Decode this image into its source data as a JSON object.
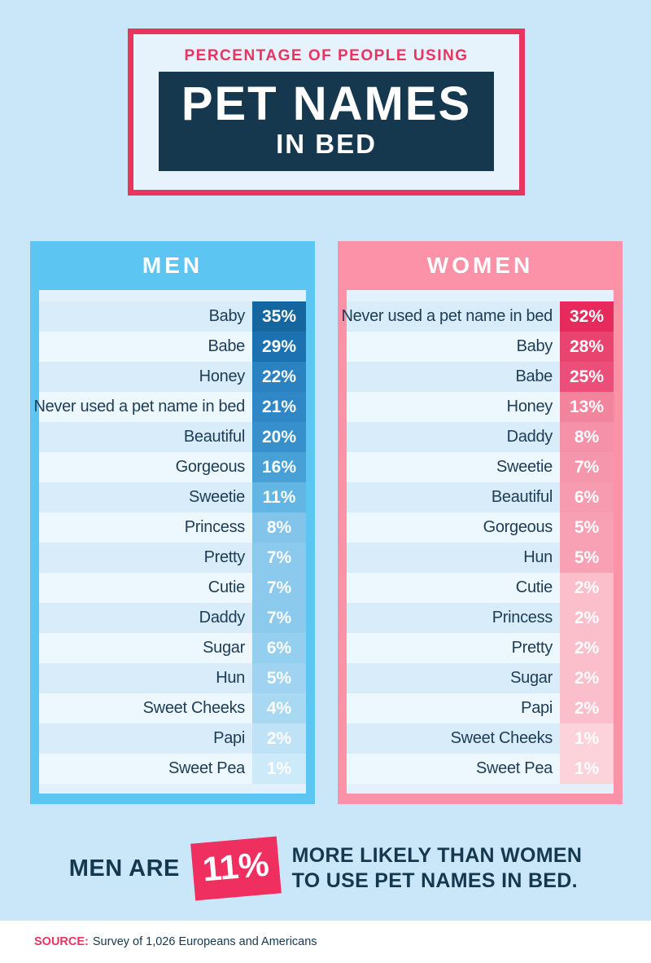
{
  "title": {
    "eyebrow": "PERCENTAGE OF PEOPLE USING",
    "headline": "PET NAMES",
    "subheadline": "IN BED"
  },
  "colors": {
    "page_background": "#c9e7f9",
    "accent_pink": "#e8345e",
    "navy": "#16384e",
    "men_panel": "#5cc5f2",
    "women_panel": "#fb92a8",
    "list_background": "#e2f1fc",
    "row_tint": "#d8ecf9",
    "row_light": "#edf7fe",
    "badge_pink": "#ee2f5f"
  },
  "panels": [
    {
      "id": "men",
      "label": "MEN",
      "items": [
        {
          "label": "Baby",
          "value": "35%",
          "color": "#15669f"
        },
        {
          "label": "Babe",
          "value": "29%",
          "color": "#1c72b0"
        },
        {
          "label": "Honey",
          "value": "22%",
          "color": "#2a82c0"
        },
        {
          "label": "Never used a pet name in bed",
          "value": "21%",
          "color": "#2f87c5"
        },
        {
          "label": "Beautiful",
          "value": "20%",
          "color": "#3790cb"
        },
        {
          "label": "Gorgeous",
          "value": "16%",
          "color": "#47a0d6"
        },
        {
          "label": "Sweetie",
          "value": "11%",
          "color": "#63b5e4"
        },
        {
          "label": "Princess",
          "value": "8%",
          "color": "#82c4ea"
        },
        {
          "label": "Pretty",
          "value": "7%",
          "color": "#8bc9ed"
        },
        {
          "label": "Cutie",
          "value": "7%",
          "color": "#8bc9ed"
        },
        {
          "label": "Daddy",
          "value": "7%",
          "color": "#8bc9ed"
        },
        {
          "label": "Sugar",
          "value": "6%",
          "color": "#95cff0"
        },
        {
          "label": "Hun",
          "value": "5%",
          "color": "#9fd3f1"
        },
        {
          "label": "Sweet Cheeks",
          "value": "4%",
          "color": "#a9d8f3"
        },
        {
          "label": "Papi",
          "value": "2%",
          "color": "#bfe2f7"
        },
        {
          "label": "Sweet Pea",
          "value": "1%",
          "color": "#cdeafa"
        }
      ]
    },
    {
      "id": "women",
      "label": "WOMEN",
      "items": [
        {
          "label": "Never used a pet name in bed",
          "value": "32%",
          "color": "#e62a5c"
        },
        {
          "label": "Baby",
          "value": "28%",
          "color": "#e9436f"
        },
        {
          "label": "Babe",
          "value": "25%",
          "color": "#eb4e78"
        },
        {
          "label": "Honey",
          "value": "13%",
          "color": "#f3849d"
        },
        {
          "label": "Daddy",
          "value": "8%",
          "color": "#f591a9"
        },
        {
          "label": "Sweetie",
          "value": "7%",
          "color": "#f696ad"
        },
        {
          "label": "Beautiful",
          "value": "6%",
          "color": "#f79bb1"
        },
        {
          "label": "Gorgeous",
          "value": "5%",
          "color": "#f8a1b5"
        },
        {
          "label": "Hun",
          "value": "5%",
          "color": "#f8a1b5"
        },
        {
          "label": "Cutie",
          "value": "2%",
          "color": "#fabfcb"
        },
        {
          "label": "Princess",
          "value": "2%",
          "color": "#fabfcb"
        },
        {
          "label": "Pretty",
          "value": "2%",
          "color": "#fabfcb"
        },
        {
          "label": "Sugar",
          "value": "2%",
          "color": "#fabfcb"
        },
        {
          "label": "Papi",
          "value": "2%",
          "color": "#fabfcb"
        },
        {
          "label": "Sweet Cheeks",
          "value": "1%",
          "color": "#fcd3db"
        },
        {
          "label": "Sweet Pea",
          "value": "1%",
          "color": "#fcd3db"
        }
      ]
    }
  ],
  "callout": {
    "prefix": "MEN ARE",
    "stat": "11%",
    "line1": "MORE LIKELY THAN WOMEN",
    "line2": "TO USE PET NAMES IN BED."
  },
  "source": {
    "label": "SOURCE:",
    "text": "Survey of 1,026 Europeans and Americans"
  },
  "chart_data": {
    "type": "table",
    "title": "Percentage of People Using Pet Names in Bed",
    "series": [
      {
        "name": "Men",
        "categories": [
          "Baby",
          "Babe",
          "Honey",
          "Never used a pet name in bed",
          "Beautiful",
          "Gorgeous",
          "Sweetie",
          "Princess",
          "Pretty",
          "Cutie",
          "Daddy",
          "Sugar",
          "Hun",
          "Sweet Cheeks",
          "Papi",
          "Sweet Pea"
        ],
        "values": [
          35,
          29,
          22,
          21,
          20,
          16,
          11,
          8,
          7,
          7,
          7,
          6,
          5,
          4,
          2,
          1
        ]
      },
      {
        "name": "Women",
        "categories": [
          "Never used a pet name in bed",
          "Baby",
          "Babe",
          "Honey",
          "Daddy",
          "Sweetie",
          "Beautiful",
          "Gorgeous",
          "Hun",
          "Cutie",
          "Princess",
          "Pretty",
          "Sugar",
          "Papi",
          "Sweet Cheeks",
          "Sweet Pea"
        ],
        "values": [
          32,
          28,
          25,
          13,
          8,
          7,
          6,
          5,
          5,
          2,
          2,
          2,
          2,
          2,
          1,
          1
        ]
      }
    ],
    "annotation": "Men are 11% more likely than women to use pet names in bed.",
    "source": "Survey of 1,026 Europeans and Americans",
    "unit": "%"
  }
}
